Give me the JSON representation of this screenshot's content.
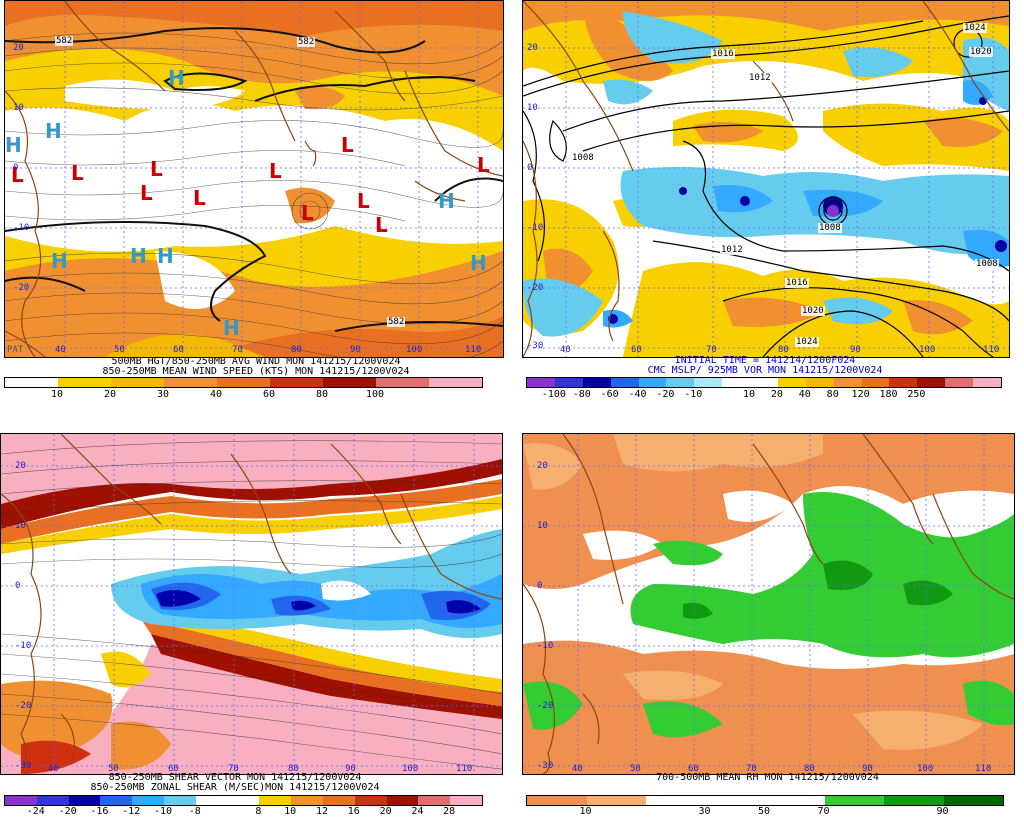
{
  "panels": [
    {
      "id": "tl",
      "caption_lines": [
        "500MB HGT/850-250MB AVG WIND MON 141215/1200V024",
        "850-250MB MEAN WIND SPEED (KTS) MON 141215/1200V024"
      ],
      "colorbar_colors": [
        "#ffffff",
        "#f8d000",
        "#f5b800",
        "#f09030",
        "#e87020",
        "#d03010",
        "#a01000",
        "#e07070",
        "#f8b0c0"
      ],
      "colorbar_ticks": [
        "10",
        "20",
        "30",
        "40",
        "60",
        "80",
        "100"
      ],
      "lat_labels": [
        "20",
        "10",
        "0",
        "-10",
        "-20"
      ],
      "lon_labels": [
        "40",
        "50",
        "60",
        "70",
        "80",
        "90",
        "100",
        "110"
      ],
      "contour_labels": [
        "582",
        "582",
        "582"
      ],
      "highs": [
        "H",
        "H",
        "H",
        "H",
        "H",
        "H",
        "H",
        "H",
        "H"
      ],
      "lows": [
        "L",
        "L",
        "L",
        "L",
        "L",
        "L",
        "L",
        "L",
        "L",
        "L",
        "L"
      ],
      "corner_text": "PAT"
    },
    {
      "id": "tr",
      "caption_lines": [
        "INITIAL TIME = 141214/1200F024",
        "CMC MSLP/ 925MB VOR MON 141215/1200V024"
      ],
      "colorbar_colors": [
        "#8833cc",
        "#3333dd",
        "#0000aa",
        "#2266ee",
        "#33aaff",
        "#66ccee",
        "#aae6f5",
        "#ffffff",
        "#ffffff",
        "#f8d000",
        "#f5b800",
        "#f09030",
        "#e87020",
        "#d03010",
        "#a01000",
        "#e07070",
        "#f8b0c0"
      ],
      "colorbar_ticks": [
        "-100",
        "-80",
        "-60",
        "-40",
        "-20",
        "-10",
        "10",
        "20",
        "40",
        "80",
        "120",
        "180",
        "250"
      ],
      "lat_labels": [
        "20",
        "10",
        "0",
        "-10",
        "-20",
        "-30"
      ],
      "lon_labels": [
        "40",
        "60",
        "70",
        "80",
        "90",
        "100",
        "110"
      ],
      "contour_labels": [
        "1016",
        "1012",
        "1008",
        "1012",
        "1016",
        "1020",
        "1024",
        "1008",
        "1008",
        "1024",
        "1020"
      ]
    },
    {
      "id": "bl",
      "caption_lines": [
        "850-250MB SHEAR VECTOR MON 141215/1200V024",
        "850-250MB ZONAL SHEAR (M/SEC)MON 141215/1200V024"
      ],
      "colorbar_colors": [
        "#8833cc",
        "#3333dd",
        "#0000aa",
        "#2266ee",
        "#33aaff",
        "#66ccee",
        "#ffffff",
        "#ffffff",
        "#f8d000",
        "#f09030",
        "#e87020",
        "#d03010",
        "#a01000",
        "#e07070",
        "#f8b0c0"
      ],
      "colorbar_ticks": [
        "-24",
        "-20",
        "-16",
        "-12",
        "-10",
        "-8",
        "8",
        "10",
        "12",
        "16",
        "20",
        "24",
        "28"
      ],
      "lat_labels": [
        "20",
        "10",
        "0",
        "-10",
        "-20",
        "-30"
      ],
      "lon_labels": [
        "40",
        "50",
        "60",
        "70",
        "80",
        "90",
        "100",
        "110"
      ]
    },
    {
      "id": "br",
      "caption_lines": [
        "700-500MB MEAN RH MON 141215/1200V024"
      ],
      "colorbar_colors": [
        "#f09050",
        "#f5b070",
        "#ffffff",
        "#ffffff",
        "#ffffff",
        "#33cc33",
        "#119911",
        "#006600"
      ],
      "colorbar_ticks": [
        "10",
        "30",
        "50",
        "70",
        "90"
      ],
      "lat_labels": [
        "20",
        "10",
        "0",
        "-10",
        "-20",
        "-30"
      ],
      "lon_labels": [
        "40",
        "50",
        "60",
        "70",
        "80",
        "90",
        "100",
        "110"
      ]
    }
  ]
}
